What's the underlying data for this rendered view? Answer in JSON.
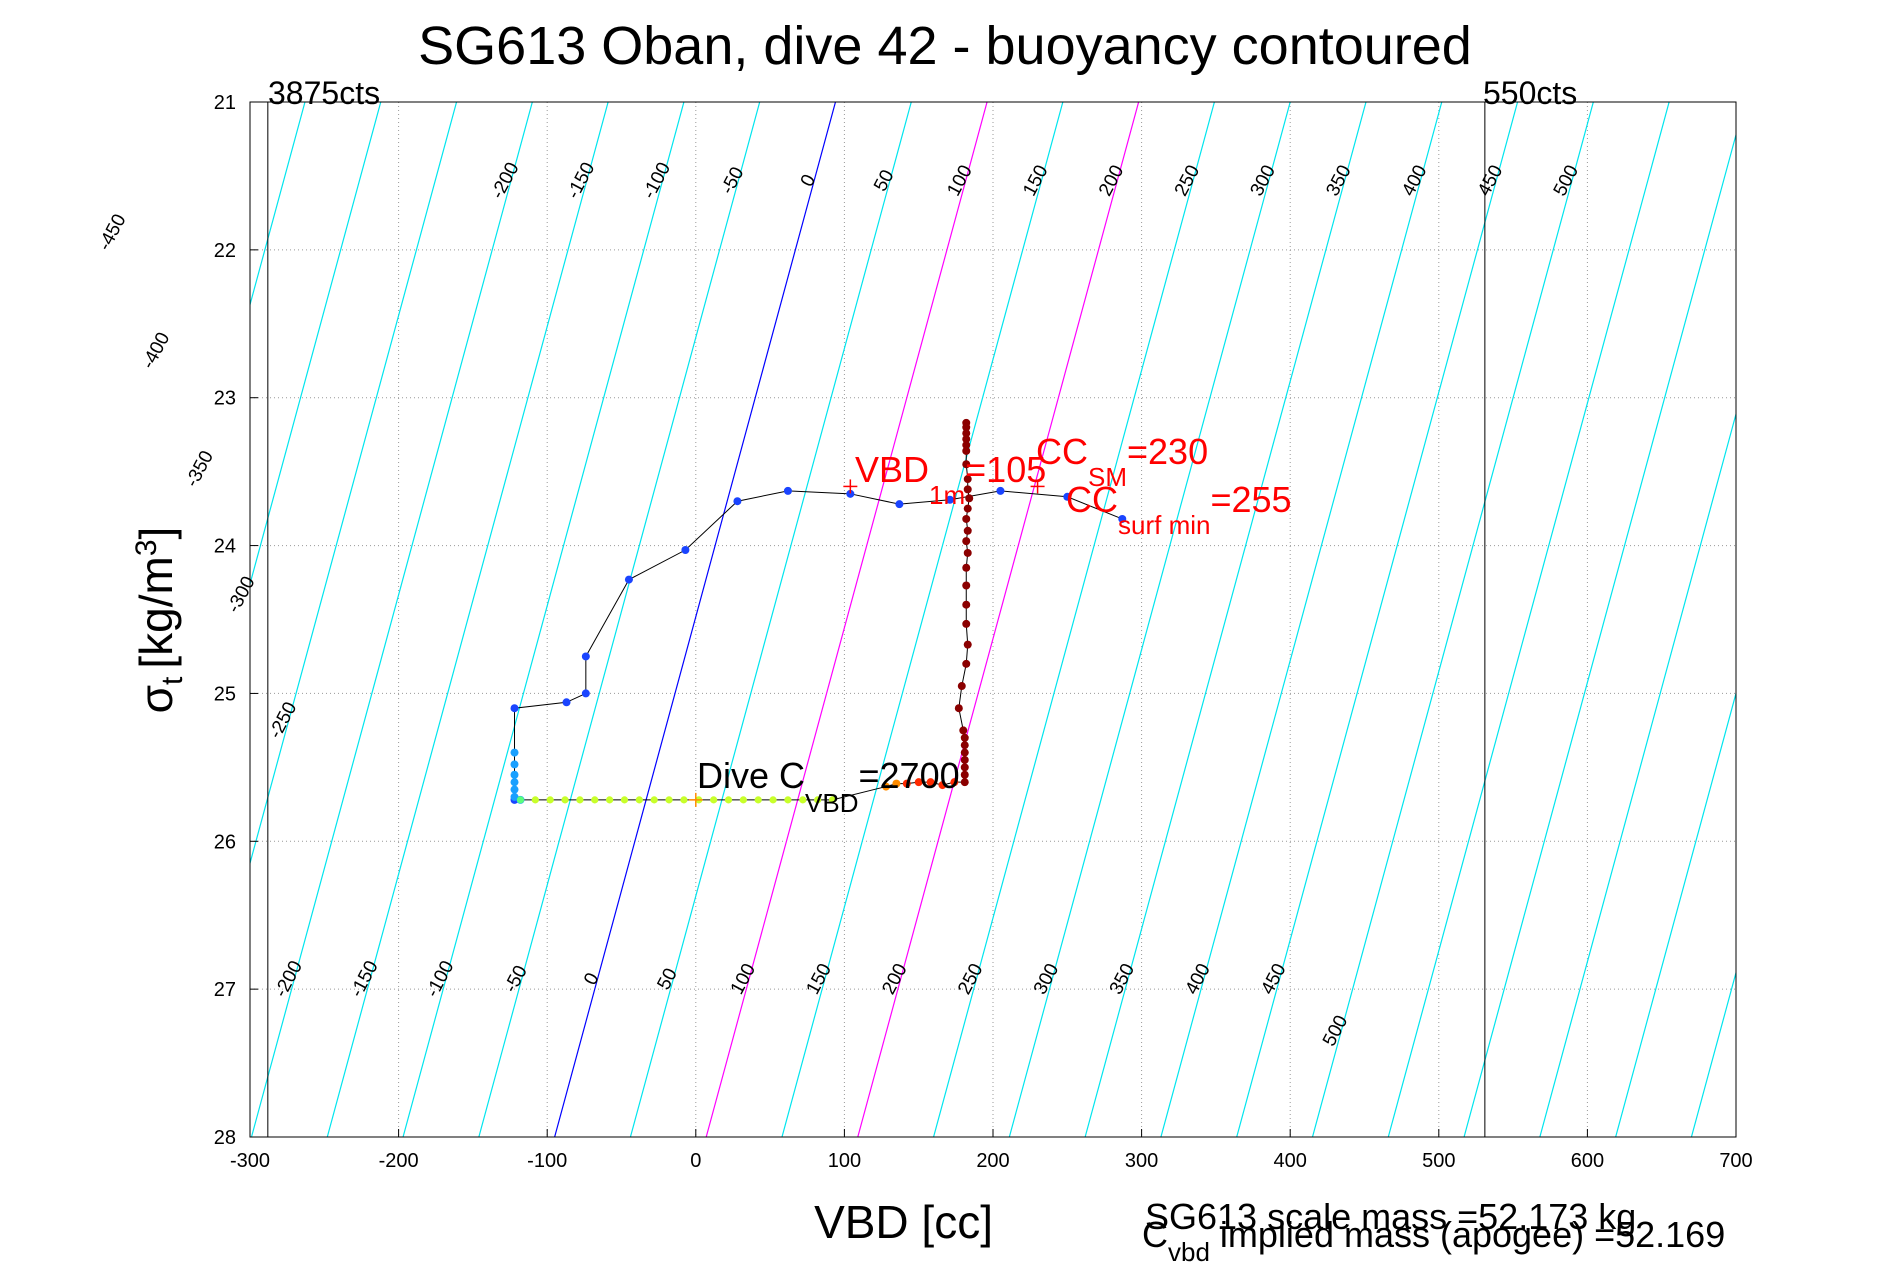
{
  "colors": {
    "contour": "#00e5ee",
    "zero_line": "#0000ff",
    "magenta_line": "#ff00ff",
    "grid": "#999999",
    "annotation_red": "#ff0000",
    "track": "#000000",
    "profile_dots": "#8b0000"
  },
  "chart_data": {
    "type": "scatter",
    "title": "SG613 Oban, dive 42 - buoyancy contoured",
    "xlabel": "VBD [cc]",
    "ylabel_main": "σ",
    "ylabel_sub": "t",
    "ylabel_unit": "[kg/m",
    "ylabel_sup": "3",
    "ylabel_close": "]",
    "xlim": [
      -300,
      700
    ],
    "ylim": [
      21,
      28
    ],
    "y_reversed": true,
    "grid": true,
    "xticks": [
      "-300",
      "-200",
      "-100",
      "0",
      "100",
      "200",
      "300",
      "400",
      "500",
      "600",
      "700"
    ],
    "yticks": [
      "21",
      "22",
      "23",
      "24",
      "25",
      "26",
      "27",
      "28"
    ],
    "vbd_limits": {
      "min_x": -288,
      "max_x": 531,
      "min_label": "3875cts",
      "max_label": "550cts"
    },
    "contours": {
      "values": [
        -450,
        -400,
        -350,
        -300,
        -250,
        -200,
        -150,
        -100,
        -50,
        0,
        50,
        100,
        150,
        200,
        250,
        300,
        350,
        400,
        450,
        500
      ],
      "top_labels": [
        "-450",
        "-400",
        "-350",
        "-300",
        "-250",
        "-200",
        "-150",
        "-100",
        "-50",
        "0",
        "50",
        "100",
        "150",
        "200",
        "250",
        "300",
        "350",
        "400",
        "450",
        "500"
      ],
      "bottom_labels": [
        "-200",
        "-150",
        "-100",
        "-50",
        "0",
        "50",
        "100",
        "150",
        "200",
        "250",
        "300",
        "350",
        "400",
        "450",
        "500"
      ],
      "magenta_values": [
        100,
        200
      ],
      "zero_value": 0
    },
    "dive_track": [
      {
        "x": -122,
        "y": 25.72
      },
      {
        "x": -122,
        "y": 25.1
      },
      {
        "x": -87,
        "y": 25.06
      },
      {
        "x": -74,
        "y": 25.0
      },
      {
        "x": -74,
        "y": 24.75
      },
      {
        "x": -45,
        "y": 24.23
      },
      {
        "x": -7,
        "y": 24.03
      },
      {
        "x": 28,
        "y": 23.7
      },
      {
        "x": 62,
        "y": 23.63
      },
      {
        "x": 104,
        "y": 23.65
      },
      {
        "x": 137,
        "y": 23.72
      },
      {
        "x": 171,
        "y": 23.69
      },
      {
        "x": 205,
        "y": 23.63
      },
      {
        "x": 250,
        "y": 23.67
      },
      {
        "x": 287,
        "y": 23.82
      }
    ],
    "surface_series": [
      {
        "x": -122,
        "y": 25.4
      },
      {
        "x": -122,
        "y": 25.48
      },
      {
        "x": -122,
        "y": 25.55
      },
      {
        "x": -122,
        "y": 25.6
      },
      {
        "x": -122,
        "y": 25.65
      },
      {
        "x": -122,
        "y": 25.7
      },
      {
        "x": -118,
        "y": 25.72
      }
    ],
    "bottom_series": [
      {
        "x": -118,
        "y": 25.72
      },
      {
        "x": -108,
        "y": 25.72
      },
      {
        "x": -98,
        "y": 25.72
      },
      {
        "x": -88,
        "y": 25.72
      },
      {
        "x": -78,
        "y": 25.72
      },
      {
        "x": -68,
        "y": 25.72
      },
      {
        "x": -58,
        "y": 25.72
      },
      {
        "x": -48,
        "y": 25.72
      },
      {
        "x": -38,
        "y": 25.72
      },
      {
        "x": -28,
        "y": 25.72
      },
      {
        "x": -18,
        "y": 25.72
      },
      {
        "x": -8,
        "y": 25.72
      },
      {
        "x": 2,
        "y": 25.72
      },
      {
        "x": 12,
        "y": 25.72
      },
      {
        "x": 22,
        "y": 25.72
      },
      {
        "x": 32,
        "y": 25.72
      },
      {
        "x": 42,
        "y": 25.72
      },
      {
        "x": 52,
        "y": 25.72
      },
      {
        "x": 62,
        "y": 25.72
      },
      {
        "x": 72,
        "y": 25.72
      },
      {
        "x": 82,
        "y": 25.72
      },
      {
        "x": 92,
        "y": 25.72
      }
    ],
    "orange_series": [
      {
        "x": 128,
        "y": 25.63
      },
      {
        "x": 135,
        "y": 25.61
      },
      {
        "x": 142,
        "y": 25.61
      },
      {
        "x": 150,
        "y": 25.6
      },
      {
        "x": 158,
        "y": 25.6
      },
      {
        "x": 166,
        "y": 25.62
      },
      {
        "x": 174,
        "y": 25.6
      }
    ],
    "profile_series": [
      {
        "x": 182,
        "y": 23.17
      },
      {
        "x": 182,
        "y": 23.2
      },
      {
        "x": 182,
        "y": 23.24
      },
      {
        "x": 182,
        "y": 23.28
      },
      {
        "x": 182,
        "y": 23.32
      },
      {
        "x": 182,
        "y": 23.36
      },
      {
        "x": 182,
        "y": 23.45
      },
      {
        "x": 183,
        "y": 23.55
      },
      {
        "x": 183,
        "y": 23.62
      },
      {
        "x": 184,
        "y": 23.68
      },
      {
        "x": 183,
        "y": 23.75
      },
      {
        "x": 182,
        "y": 23.82
      },
      {
        "x": 183,
        "y": 23.9
      },
      {
        "x": 182,
        "y": 23.97
      },
      {
        "x": 183,
        "y": 24.05
      },
      {
        "x": 182,
        "y": 24.15
      },
      {
        "x": 182,
        "y": 24.27
      },
      {
        "x": 182,
        "y": 24.4
      },
      {
        "x": 182,
        "y": 24.53
      },
      {
        "x": 183,
        "y": 24.67
      },
      {
        "x": 182,
        "y": 24.8
      },
      {
        "x": 179,
        "y": 24.95
      },
      {
        "x": 177,
        "y": 25.1
      },
      {
        "x": 180,
        "y": 25.25
      },
      {
        "x": 181,
        "y": 25.3
      },
      {
        "x": 181,
        "y": 25.35
      },
      {
        "x": 181,
        "y": 25.4
      },
      {
        "x": 181,
        "y": 25.45
      },
      {
        "x": 181,
        "y": 25.5
      },
      {
        "x": 181,
        "y": 25.55
      },
      {
        "x": 181,
        "y": 25.6
      }
    ],
    "markers": [
      {
        "x": 0,
        "y": 25.72
      },
      {
        "x": 104,
        "y": 23.6
      },
      {
        "x": 230,
        "y": 23.6
      }
    ],
    "annotations": {
      "cvbd": {
        "main": "Dive C",
        "sub": "VBD",
        "rest": "=2700"
      },
      "vbd1m": {
        "main": "VBD",
        "sub": "1m",
        "rest": "=105"
      },
      "ccsm": {
        "main": "CC",
        "sub": "SM",
        "rest": "=230"
      },
      "ccsurf": {
        "main": "CC",
        "sub": "surf min",
        "rest": "=255"
      }
    },
    "footer": {
      "scale_mass": "SG613 scale mass =52.173 kg",
      "cvbd_main": "C",
      "cvbd_sub": "vbd",
      "implied": " implied mass (apogee) =52.169"
    }
  }
}
